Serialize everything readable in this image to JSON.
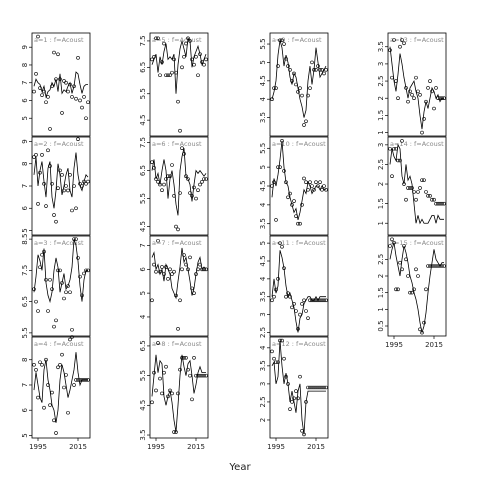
{
  "chart_data": {
    "type": "line",
    "title": "",
    "xlabel": "Year",
    "ylabel": "",
    "xlim": [
      1992,
      2021
    ],
    "x_ticks": [
      1995,
      2015
    ],
    "x_tick_labels": [
      "1995",
      "2015"
    ],
    "x": [
      1993,
      1994,
      1995,
      1996,
      1997,
      1998,
      1999,
      2000,
      2001,
      2002,
      2003,
      2004,
      2005,
      2006,
      2007,
      2008,
      2009,
      2010,
      2011,
      2012,
      2013,
      2014,
      2015,
      2016,
      2017,
      2018,
      2019,
      2020
    ],
    "panels": [
      {
        "label": "a=1 : f=Acoust",
        "ylim": [
          4,
          9.8
        ],
        "yticks": [
          5,
          6,
          7,
          8,
          9
        ],
        "line": [
          6.8,
          7.2,
          7.0,
          6.9,
          6.5,
          6.8,
          6.2,
          6.5,
          6.6,
          7.0,
          6.8,
          7.2,
          6.5,
          7.5,
          6.4,
          6.6,
          6.5,
          6.8,
          7.0,
          6.4,
          6.8,
          7.6,
          7.5,
          6.9,
          6.4,
          6.8,
          6.9,
          6.9
        ],
        "points": [
          6.5,
          7.5,
          9.6,
          6.7,
          6.3,
          6.5,
          5.9,
          6.2,
          4.4,
          6.8,
          8.7,
          7.2,
          8.6,
          7.2,
          5.3,
          7.1,
          7.0,
          6.5,
          6.9,
          6.2,
          6.8,
          6.1,
          8.4,
          6.0,
          5.6,
          6.2,
          5.0,
          5.9
        ]
      },
      {
        "label": "a=5 : f=Acoust",
        "ylim": [
          3.9,
          7.8
        ],
        "yticks": [
          4.5,
          5.5,
          6.5,
          7.5
        ],
        "line": [
          6.6,
          6.8,
          7.0,
          6.3,
          6.9,
          6.6,
          7.1,
          7.4,
          6.8,
          6.9,
          6.8,
          7.0,
          5.5,
          6.6,
          7.2,
          7.5,
          7.2,
          6.9,
          7.6,
          7.5,
          6.5,
          6.9,
          7.1,
          7.3,
          7.0,
          6.6,
          6.8,
          7.0
        ],
        "points": [
          6.8,
          6.9,
          7.6,
          7.6,
          6.2,
          6.7,
          7.4,
          6.2,
          6.2,
          6.2,
          6.3,
          6.8,
          6.3,
          5.2,
          4.1,
          6.5,
          6.9,
          7.4,
          7.6,
          7.5,
          6.8,
          6.6,
          6.9,
          6.2,
          7.0,
          6.7,
          6.6,
          6.8
        ]
      },
      {
        "label": "a=9 : f=Acoust",
        "ylim": [
          3.0,
          5.8
        ],
        "yticks": [
          3.5,
          4.0,
          4.5,
          5.0,
          5.5
        ],
        "line": [
          4.0,
          4.2,
          4.5,
          5.2,
          5.6,
          5.4,
          4.9,
          5.2,
          5.0,
          4.6,
          4.4,
          4.7,
          4.6,
          4.3,
          4.0,
          3.8,
          3.5,
          3.7,
          4.5,
          4.9,
          4.4,
          4.8,
          5.4,
          5.0,
          4.6,
          4.7,
          4.8,
          4.9
        ],
        "points": [
          4.0,
          4.3,
          4.3,
          4.9,
          5.6,
          5.6,
          5.5,
          5.1,
          4.9,
          4.8,
          4.5,
          4.7,
          4.4,
          4.2,
          4.3,
          4.1,
          3.3,
          3.4,
          4.1,
          4.3,
          5.0,
          4.8,
          4.8,
          4.9,
          4.8,
          4.8,
          4.7,
          4.8
        ]
      },
      {
        "label": "a=13 : f=Acoust",
        "ylim": [
          0.9,
          3.9
        ],
        "yticks": [
          1.0,
          1.5,
          2.0,
          2.5,
          3.0,
          3.5
        ],
        "line": [
          3.5,
          3.0,
          2.5,
          2.2,
          2.7,
          3.3,
          3.0,
          2.6,
          2.3,
          2.0,
          2.3,
          2.4,
          2.5,
          2.2,
          2.0,
          1.5,
          1.1,
          1.6,
          1.9,
          1.7,
          2.0,
          2.3,
          2.2,
          2.0,
          2.1,
          1.9,
          2.0,
          2.0
        ],
        "points": [
          3.4,
          2.6,
          3.7,
          2.5,
          2.0,
          3.5,
          3.7,
          3.6,
          2.3,
          1.9,
          2.2,
          2.1,
          2.0,
          2.6,
          2.2,
          2.1,
          1.0,
          1.4,
          1.9,
          2.3,
          2.5,
          2.2,
          1.7,
          2.3,
          2.0,
          2.0,
          2.0,
          2.0
        ]
      },
      {
        "label": "a=2 : f=Acoust",
        "ylim": [
          4.8,
          9.2
        ],
        "yticks": [
          5,
          6,
          7,
          8,
          9
        ],
        "line": [
          7.5,
          8.3,
          7.0,
          7.7,
          8.1,
          7.2,
          6.5,
          7.8,
          8.1,
          6.5,
          6.0,
          6.8,
          8.0,
          7.5,
          6.6,
          7.0,
          7.5,
          7.8,
          6.8,
          6.5,
          7.8,
          8.5,
          7.5,
          7.0,
          6.8,
          7.2,
          7.5,
          7.4
        ],
        "points": [
          8.3,
          8.4,
          6.2,
          7.6,
          8.4,
          7.1,
          6.1,
          8.6,
          7.9,
          7.1,
          5.7,
          5.4,
          6.9,
          7.7,
          7.5,
          6.8,
          7.0,
          6.8,
          7.5,
          5.9,
          7.0,
          6.0,
          9.1,
          7.1,
          7.0,
          7.2,
          7.1,
          7.2
        ]
      },
      {
        "label": "a=6 : f=Acoust",
        "ylim": [
          4.2,
          7.7
        ],
        "yticks": [
          4.5,
          5.5,
          6.5,
          7.5
        ],
        "line": [
          6.5,
          6.9,
          6.2,
          6.4,
          6.0,
          6.5,
          6.9,
          6.5,
          5.5,
          6.2,
          6.5,
          6.0,
          5.3,
          4.9,
          6.5,
          7.0,
          7.3,
          6.3,
          6.2,
          6.0,
          5.4,
          6.0,
          6.5,
          6.4,
          6.5,
          6.4,
          6.3,
          6.4
        ],
        "points": [
          6.8,
          6.6,
          6.2,
          6.1,
          6.0,
          5.8,
          6.0,
          6.2,
          6.3,
          6.3,
          6.7,
          5.6,
          4.5,
          4.4,
          5.7,
          7.3,
          7.1,
          6.3,
          6.2,
          5.7,
          5.6,
          5.9,
          5.5,
          5.8,
          6.0,
          6.1,
          6.2,
          6.2
        ]
      },
      {
        "label": "a=10 : f=Acoust",
        "ylim": [
          3.2,
          5.8
        ],
        "yticks": [
          3.5,
          4.0,
          4.5,
          5.0,
          5.5
        ],
        "line": [
          4.2,
          4.7,
          4.5,
          4.8,
          5.2,
          5.7,
          5.0,
          4.6,
          4.5,
          4.2,
          4.0,
          3.8,
          3.9,
          3.6,
          3.8,
          4.1,
          4.4,
          4.3,
          4.6,
          4.5,
          4.3,
          4.4,
          4.5,
          4.5,
          4.4,
          4.5,
          4.4,
          4.4
        ],
        "points": [
          4.5,
          4.6,
          3.6,
          5.0,
          5.0,
          5.7,
          4.9,
          4.6,
          4.2,
          4.3,
          4.0,
          4.1,
          3.7,
          3.5,
          3.5,
          4.0,
          4.7,
          4.6,
          4.4,
          4.6,
          4.5,
          4.4,
          4.6,
          4.5,
          4.6,
          4.4,
          4.5,
          4.4
        ]
      },
      {
        "label": "a=14 : f=Acoust",
        "ylim": [
          0.7,
          3.2
        ],
        "yticks": [
          1.0,
          1.5,
          2.0,
          2.5,
          3.0
        ],
        "line": [
          2.5,
          2.9,
          2.7,
          2.6,
          3.0,
          2.9,
          2.2,
          2.0,
          2.5,
          2.1,
          2.2,
          2.0,
          1.5,
          1.0,
          1.2,
          1.0,
          1.1,
          1.0,
          1.0,
          1.0,
          1.1,
          1.2,
          1.2,
          1.0,
          1.2,
          1.1,
          1.1,
          1.1
        ],
        "points": [
          2.9,
          2.2,
          2.9,
          2.9,
          2.6,
          2.6,
          3.1,
          2.0,
          1.6,
          1.9,
          1.9,
          1.9,
          1.8,
          1.6,
          1.8,
          1.9,
          2.1,
          2.1,
          1.8,
          1.7,
          1.7,
          1.6,
          1.6,
          1.5,
          1.5,
          1.5,
          1.5,
          1.5
        ]
      },
      {
        "label": "a=3 : f=Acoust",
        "ylim": [
          5.4,
          8.6
        ],
        "yticks": [
          5.5,
          6.5,
          7.5,
          8.5
        ],
        "line": [
          6.8,
          7.3,
          8.0,
          7.8,
          7.5,
          8.2,
          7.1,
          6.7,
          6.5,
          6.8,
          7.5,
          7.9,
          7.6,
          6.8,
          7.1,
          7.4,
          6.9,
          7.0,
          7.2,
          7.6,
          8.5,
          8.3,
          7.8,
          7.0,
          6.5,
          7.2,
          7.5,
          7.5
        ],
        "points": [
          6.9,
          6.5,
          6.2,
          7.6,
          8.0,
          8.1,
          7.2,
          6.2,
          7.2,
          6.9,
          5.7,
          5.9,
          7.5,
          7.5,
          7.1,
          6.6,
          6.8,
          7.0,
          6.8,
          5.6,
          8.5,
          8.5,
          7.9,
          7.3,
          6.7,
          7.4,
          7.5,
          7.5
        ]
      },
      {
        "label": "a=7 : f=Acoust",
        "ylim": [
          3.2,
          7.4
        ],
        "yticks": [
          4,
          5,
          6,
          7
        ],
        "line": [
          6.5,
          6.7,
          6.0,
          6.2,
          5.8,
          6.0,
          5.5,
          6.2,
          6.0,
          5.8,
          5.2,
          5.0,
          4.8,
          5.5,
          6.1,
          6.9,
          6.3,
          6.5,
          6.0,
          5.5,
          4.9,
          5.2,
          5.8,
          6.3,
          6.5,
          6.0,
          6.1,
          6.0
        ],
        "points": [
          4.7,
          6.2,
          5.9,
          7.2,
          5.9,
          6.1,
          5.8,
          6.1,
          5.6,
          6.0,
          5.8,
          5.9,
          4.9,
          3.5,
          4.7,
          6.0,
          6.6,
          6.2,
          6.0,
          6.5,
          5.2,
          5.0,
          5.8,
          6.0,
          6.2,
          6.0,
          6.0,
          6.0
        ]
      },
      {
        "label": "a=11 : f=Acoust",
        "ylim": [
          2.4,
          5.2
        ],
        "yticks": [
          2.5,
          3.0,
          3.5,
          4.0,
          4.5,
          5.0
        ],
        "line": [
          3.5,
          4.0,
          3.6,
          3.8,
          4.8,
          4.6,
          4.3,
          3.8,
          3.5,
          3.6,
          3.4,
          3.2,
          2.8,
          2.5,
          2.9,
          3.0,
          3.3,
          3.4,
          3.5,
          3.5,
          3.4,
          3.4,
          3.5,
          3.4,
          3.5,
          3.5,
          3.5,
          3.5
        ],
        "points": [
          3.4,
          3.5,
          3.7,
          4.0,
          5.0,
          4.9,
          4.3,
          3.5,
          3.6,
          3.5,
          3.2,
          3.3,
          3.1,
          2.6,
          3.0,
          3.3,
          3.4,
          3.1,
          2.9,
          3.4,
          3.4,
          3.4,
          3.4,
          3.4,
          3.4,
          3.4,
          3.4,
          3.4
        ]
      },
      {
        "label": "a=15 : f=Acoust",
        "ylim": [
          0.2,
          3.2
        ],
        "yticks": [
          0.5,
          1.0,
          1.5,
          2.0,
          2.5
        ],
        "line": [
          2.5,
          2.8,
          3.0,
          2.6,
          2.3,
          2.0,
          2.5,
          2.9,
          2.7,
          2.4,
          2.0,
          1.8,
          1.5,
          1.3,
          1.0,
          0.6,
          0.3,
          0.5,
          0.9,
          1.5,
          2.0,
          2.4,
          2.8,
          2.5,
          2.4,
          2.3,
          2.4,
          2.4
        ],
        "points": [
          2.9,
          3.1,
          3.0,
          1.6,
          1.6,
          2.4,
          2.2,
          2.9,
          2.5,
          2.0,
          1.5,
          1.5,
          1.6,
          2.2,
          2.0,
          0.4,
          0.3,
          0.6,
          1.6,
          2.3,
          2.3,
          2.3,
          2.3,
          2.3,
          2.3,
          2.3,
          2.3,
          2.3
        ]
      },
      {
        "label": "a=4 : f=Acoust",
        "ylim": [
          4.9,
          8.9
        ],
        "yticks": [
          5,
          6,
          7,
          8
        ],
        "line": [
          6.8,
          7.5,
          7.0,
          6.5,
          6.3,
          7.6,
          8.0,
          7.2,
          6.8,
          6.2,
          6.0,
          5.5,
          6.0,
          7.2,
          7.8,
          7.5,
          7.0,
          6.5,
          6.8,
          7.2,
          7.6,
          8.3,
          7.5,
          7.0,
          7.2,
          7.2,
          7.2,
          7.2
        ],
        "points": [
          7.8,
          7.6,
          6.5,
          7.9,
          7.8,
          6.1,
          8.0,
          7.0,
          6.2,
          6.7,
          5.6,
          5.1,
          7.7,
          7.8,
          8.2,
          6.9,
          7.4,
          5.9,
          8.8,
          8.9,
          7.0,
          7.2,
          7.2,
          7.2,
          7.2,
          7.2,
          7.2,
          7.2
        ]
      },
      {
        "label": "a=8 : f=Acoust",
        "ylim": [
          3.4,
          6.8
        ],
        "yticks": [
          3.5,
          4.5,
          5.5,
          6.5
        ],
        "line": [
          4.8,
          5.5,
          6.2,
          5.6,
          6.0,
          5.9,
          4.8,
          4.5,
          4.8,
          5.0,
          4.6,
          4.0,
          3.6,
          4.5,
          5.5,
          6.2,
          5.8,
          5.5,
          5.9,
          6.0,
          5.5,
          4.9,
          5.2,
          5.6,
          5.8,
          5.6,
          5.6,
          5.6
        ],
        "points": [
          4.6,
          5.6,
          5.0,
          6.6,
          5.4,
          4.9,
          5.6,
          5.8,
          4.8,
          5.0,
          4.9,
          3.6,
          3.6,
          4.9,
          5.7,
          6.1,
          6.1,
          6.1,
          5.7,
          5.5,
          4.7,
          6.1,
          5.5,
          5.5,
          5.5,
          5.5,
          5.5,
          5.5
        ]
      },
      {
        "label": "a=12 : f=Acoust",
        "ylim": [
          1.5,
          4.3
        ],
        "yticks": [
          2.0,
          2.5,
          3.0,
          3.5,
          4.0
        ],
        "line": [
          3.5,
          3.6,
          3.0,
          3.2,
          4.2,
          3.5,
          3.0,
          3.3,
          3.0,
          2.5,
          2.8,
          2.5,
          2.2,
          2.8,
          3.0,
          2.0,
          1.6,
          2.5,
          2.8,
          2.8,
          2.8,
          2.8,
          2.8,
          2.8,
          2.8,
          2.8,
          2.8,
          2.8
        ],
        "points": [
          3.9,
          3.7,
          3.6,
          3.6,
          4.2,
          4.2,
          3.7,
          3.2,
          3.0,
          2.3,
          2.5,
          2.6,
          2.8,
          2.6,
          3.2,
          1.7,
          1.6,
          2.5,
          2.9,
          2.9,
          2.9,
          2.9,
          2.9,
          2.9,
          2.9,
          2.9,
          2.9,
          2.9
        ]
      }
    ]
  }
}
